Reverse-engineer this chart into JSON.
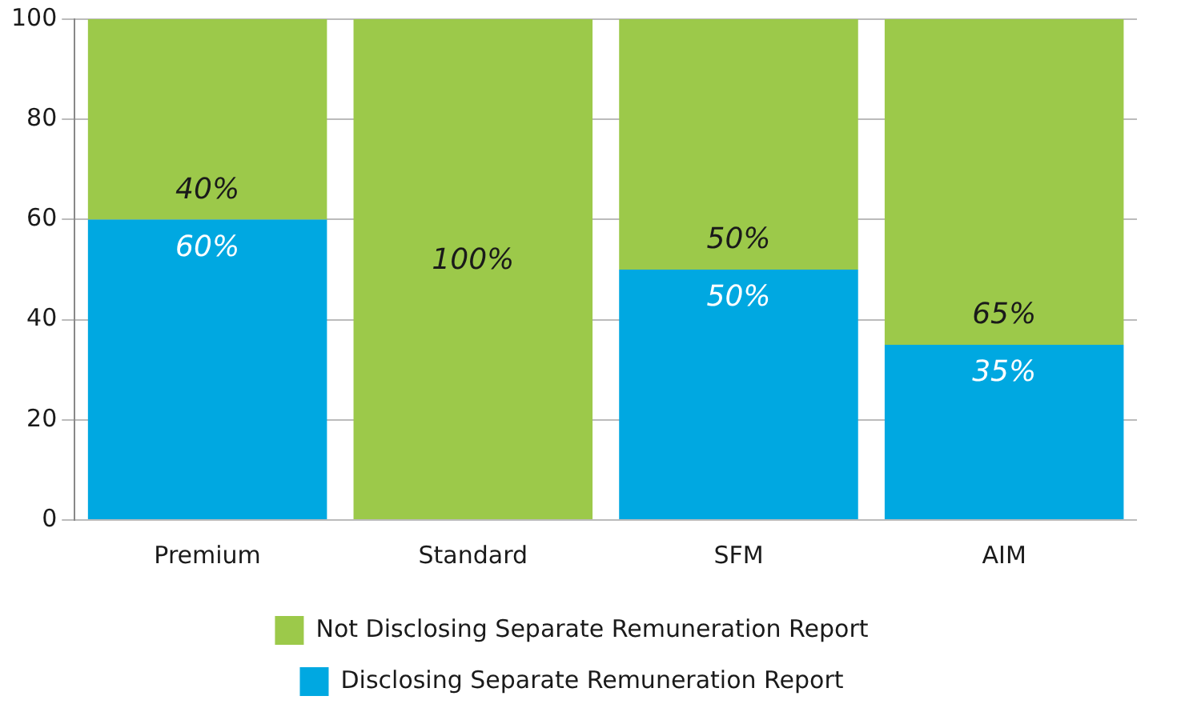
{
  "chart_data": {
    "type": "bar",
    "stacked": true,
    "categories": [
      "Premium",
      "Standard",
      "SFM",
      "AIM"
    ],
    "series": [
      {
        "name": "Disclosing Separate Remuneration Report",
        "color": "#00a8e1",
        "values": [
          60,
          0,
          50,
          35
        ],
        "value_labels": [
          "60%",
          null,
          "50%",
          "35%"
        ]
      },
      {
        "name": "Not Disclosing Separate Remuneration Report",
        "color": "#9cc94a",
        "values": [
          40,
          100,
          50,
          65
        ],
        "value_labels": [
          "40%",
          "100%",
          "50%",
          "65%"
        ]
      }
    ],
    "ylim": [
      0,
      100
    ],
    "yticks": [
      0,
      20,
      40,
      60,
      80,
      100
    ],
    "grid": "y",
    "legend": "bottom"
  }
}
